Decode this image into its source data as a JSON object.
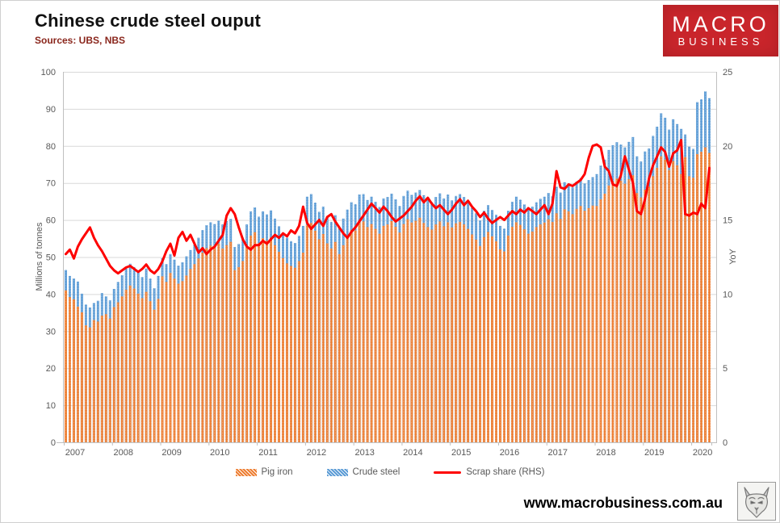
{
  "header": {
    "title": "Chinese crude steel ouput",
    "subtitle": "Sources: UBS, NBS"
  },
  "logo": {
    "line1": "MACRO",
    "line2": "BUSINESS",
    "bg_color": "#C9252B"
  },
  "footer": {
    "website": "www.macrobusiness.com.au",
    "logo_icon": "wolf-sketch-icon"
  },
  "colors": {
    "pig_iron": "#ED7D31",
    "crude_steel": "#5B9BD5",
    "scrap_line": "#FE0000",
    "grid": "#D9D9D9",
    "axis_text": "#595959",
    "subtitle_text": "#8A261C",
    "logo_bg": "#C9252B"
  },
  "chart_data": {
    "type": "bar",
    "note": "monthly stacked-style bars (pig iron base, crude steel top) with scrap-share line on right axis",
    "frequency": "monthly",
    "x_start": "2007-01",
    "x_end": "2020-05",
    "x_year_ticks": [
      2007,
      2008,
      2009,
      2010,
      2011,
      2012,
      2013,
      2014,
      2015,
      2016,
      2017,
      2018,
      2019,
      2020
    ],
    "y_left": {
      "label": "Millions of tonnes",
      "min": 0,
      "max": 100,
      "step": 10
    },
    "y_right": {
      "label": "YoY",
      "min": 0,
      "max": 25,
      "step": 5
    },
    "grid": true,
    "legend_position": "bottom",
    "legend": [
      "Pig iron",
      "Crude steel",
      "Scrap share (RHS)"
    ],
    "series": [
      {
        "name": "Pig iron",
        "type": "bar",
        "axis": "left",
        "color": "#ED7D31",
        "values": [
          41.0,
          39.2,
          38.6,
          36.6,
          35.1,
          31.6,
          31.0,
          33.0,
          32.6,
          34.2,
          34.6,
          33.4,
          36.5,
          37.8,
          39.4,
          41.2,
          42.3,
          41.5,
          40.1,
          38.9,
          40.6,
          38.1,
          35.8,
          38.7,
          44.8,
          43.3,
          45.7,
          44.2,
          42.8,
          43.5,
          45.0,
          46.8,
          48.1,
          49.6,
          51.2,
          52.4,
          53.1,
          52.4,
          53.6,
          52.3,
          53.2,
          54.1,
          46.5,
          47.3,
          48.9,
          52.6,
          55.8,
          56.7,
          53.8,
          55.1,
          54.4,
          55.3,
          53.2,
          51.4,
          49.7,
          48.3,
          47.6,
          47.1,
          48.9,
          51.2,
          58.6,
          59.2,
          57.1,
          54.8,
          56.2,
          53.7,
          52.3,
          54.1,
          50.8,
          53.2,
          55.4,
          57.3,
          57.2,
          59.4,
          59.6,
          58.1,
          58.9,
          57.6,
          56.3,
          58.4,
          58.8,
          59.7,
          58.2,
          56.6,
          58.9,
          60.2,
          59.3,
          59.8,
          60.6,
          59.2,
          58.1,
          57.4,
          58.8,
          59.6,
          58.3,
          59.4,
          58.0,
          59.1,
          59.5,
          58.8,
          57.6,
          56.1,
          54.7,
          53.0,
          55.4,
          56.8,
          55.6,
          54.3,
          52.1,
          51.5,
          55.8,
          58.2,
          59.4,
          58.7,
          57.5,
          56.3,
          56.9,
          58.1,
          58.8,
          59.3,
          60.2,
          59.5,
          61.8,
          60.3,
          62.9,
          62.3,
          61.6,
          63.0,
          63.8,
          62.5,
          63.2,
          63.9,
          63.8,
          65.6,
          67.1,
          69.3,
          70.4,
          71.2,
          70.6,
          69.8,
          71.0,
          72.1,
          67.3,
          66.1,
          68.2,
          69.0,
          71.8,
          74.1,
          77.2,
          76.3,
          73.5,
          75.9,
          74.8,
          72.4,
          77.0,
          71.8,
          71.4,
          77.8,
          78.4,
          79.6,
          78.1
        ]
      },
      {
        "name": "Crude steel",
        "type": "bar",
        "axis": "left",
        "color": "#5B9BD5",
        "values": [
          46.5,
          44.9,
          44.2,
          43.4,
          40.1,
          37.2,
          36.4,
          37.6,
          38.2,
          40.3,
          39.4,
          38.3,
          41.4,
          43.3,
          45.1,
          46.9,
          48.2,
          47.3,
          45.8,
          44.6,
          46.9,
          44.2,
          41.6,
          44.9,
          49.7,
          48.1,
          50.8,
          49.3,
          47.7,
          48.6,
          50.2,
          51.9,
          53.4,
          55.2,
          57.3,
          58.6,
          59.4,
          58.9,
          59.8,
          58.8,
          59.7,
          60.3,
          52.7,
          53.5,
          55.2,
          58.8,
          62.3,
          63.4,
          60.9,
          62.3,
          61.5,
          62.6,
          60.4,
          58.3,
          56.6,
          55.2,
          54.3,
          53.8,
          55.7,
          58.4,
          66.3,
          67.0,
          64.7,
          62.2,
          63.6,
          61.0,
          59.5,
          61.3,
          57.9,
          60.4,
          62.8,
          64.8,
          64.3,
          66.9,
          67.0,
          65.4,
          66.3,
          64.9,
          63.5,
          65.8,
          66.2,
          67.1,
          65.6,
          63.8,
          66.5,
          67.9,
          66.8,
          67.4,
          68.1,
          66.7,
          65.4,
          64.8,
          66.2,
          67.2,
          65.8,
          66.9,
          65.3,
          66.5,
          67.0,
          66.2,
          64.9,
          63.3,
          61.8,
          59.9,
          62.5,
          64.0,
          62.7,
          61.4,
          58.4,
          57.7,
          62.5,
          64.9,
          66.3,
          65.5,
          64.2,
          62.9,
          63.6,
          64.8,
          65.7,
          66.3,
          67.3,
          66.5,
          69.0,
          67.4,
          70.2,
          69.6,
          68.8,
          70.4,
          71.3,
          69.9,
          70.8,
          71.6,
          72.4,
          74.7,
          76.3,
          78.9,
          80.2,
          81.0,
          80.4,
          79.6,
          81.1,
          82.4,
          77.2,
          75.8,
          78.5,
          79.3,
          82.7,
          85.2,
          88.8,
          87.6,
          84.4,
          87.2,
          85.9,
          84.6,
          83.1,
          79.8,
          79.2,
          91.8,
          92.6,
          94.7,
          92.9
        ]
      },
      {
        "name": "Scrap share (RHS)",
        "type": "line",
        "axis": "right",
        "color": "#FE0000",
        "values": [
          12.7,
          13.0,
          12.4,
          13.2,
          13.7,
          14.1,
          14.5,
          13.8,
          13.3,
          12.9,
          12.4,
          11.9,
          11.6,
          11.4,
          11.6,
          11.8,
          11.9,
          11.7,
          11.5,
          11.7,
          12.0,
          11.6,
          11.4,
          11.7,
          12.2,
          12.9,
          13.4,
          12.6,
          13.8,
          14.2,
          13.6,
          14.0,
          13.4,
          12.8,
          13.1,
          12.7,
          13.0,
          13.2,
          13.6,
          14.0,
          15.3,
          15.8,
          15.4,
          14.5,
          13.7,
          13.2,
          13.0,
          13.3,
          13.3,
          13.6,
          13.4,
          13.7,
          14.0,
          13.8,
          14.1,
          13.9,
          14.3,
          14.1,
          14.6,
          15.9,
          14.8,
          14.4,
          14.7,
          15.0,
          14.6,
          15.2,
          15.4,
          14.9,
          14.5,
          14.1,
          13.8,
          14.2,
          14.5,
          14.9,
          15.3,
          15.7,
          16.1,
          15.8,
          15.5,
          15.9,
          15.6,
          15.2,
          14.9,
          15.1,
          15.3,
          15.6,
          15.9,
          16.3,
          16.6,
          16.2,
          16.5,
          16.1,
          15.8,
          16.0,
          15.7,
          15.4,
          15.7,
          16.1,
          16.4,
          16.0,
          16.3,
          15.9,
          15.6,
          15.2,
          15.5,
          15.1,
          14.8,
          15.0,
          15.2,
          15.0,
          15.3,
          15.6,
          15.4,
          15.7,
          15.5,
          15.8,
          15.6,
          15.4,
          15.7,
          16.0,
          15.4,
          16.1,
          18.3,
          17.2,
          17.1,
          17.4,
          17.3,
          17.5,
          17.7,
          18.1,
          19.2,
          20.0,
          20.1,
          19.9,
          18.6,
          18.3,
          17.4,
          17.3,
          18.0,
          19.3,
          18.4,
          17.5,
          15.6,
          15.4,
          16.4,
          17.8,
          18.7,
          19.3,
          19.9,
          19.6,
          18.6,
          19.5,
          19.7,
          20.4,
          15.4,
          15.3,
          15.5,
          15.4,
          16.1,
          15.8,
          18.5
        ]
      }
    ]
  }
}
